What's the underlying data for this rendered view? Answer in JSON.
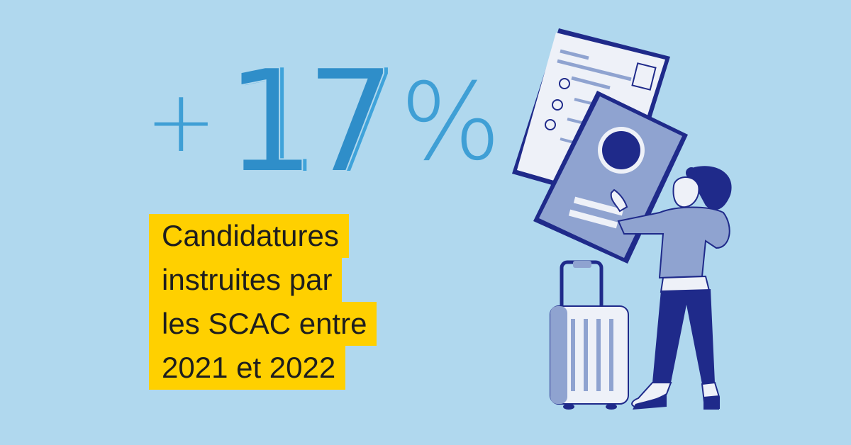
{
  "stat": {
    "sign": "+",
    "number": "17",
    "unit": "%"
  },
  "caption": {
    "lines": [
      "Candidatures",
      "instruites par",
      "les SCAC entre",
      "2021 et 2022"
    ]
  },
  "colors": {
    "background": "#b0d8ee",
    "stat_blue": "#3f9fd5",
    "highlight_yellow": "#ffd000",
    "navy": "#1f2a8a",
    "passport_blue": "#8fa3d0"
  },
  "illustration": {
    "icons": [
      "document-icon",
      "passport-icon",
      "suitcase-icon",
      "traveler-figure"
    ]
  }
}
